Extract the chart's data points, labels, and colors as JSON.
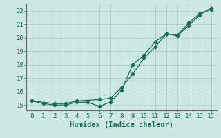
{
  "xlabel": "Humidex (Indice chaleur)",
  "background_color": "#cce8e0",
  "grid_color": "#aacfc8",
  "line_color": "#1a6b5a",
  "x_line1": [
    0,
    1,
    2,
    3,
    4,
    5,
    6,
    7,
    8,
    9,
    10,
    11,
    12,
    13,
    14,
    15,
    16
  ],
  "y_line1": [
    15.3,
    15.1,
    15.0,
    15.0,
    15.2,
    15.2,
    14.9,
    15.2,
    16.1,
    18.0,
    18.7,
    19.7,
    20.3,
    20.2,
    21.1,
    21.8,
    22.1
  ],
  "x_line2": [
    0,
    2,
    3,
    4,
    6,
    7,
    8,
    9,
    10,
    11,
    12,
    13,
    14,
    15,
    16
  ],
  "y_line2": [
    15.3,
    15.1,
    15.1,
    15.3,
    15.4,
    15.5,
    16.3,
    17.3,
    18.5,
    19.3,
    20.3,
    20.15,
    20.9,
    21.7,
    22.2
  ],
  "xlim": [
    -0.5,
    16.5
  ],
  "ylim": [
    14.6,
    22.5
  ],
  "yticks": [
    15,
    16,
    17,
    18,
    19,
    20,
    21,
    22
  ],
  "xticks": [
    0,
    1,
    2,
    3,
    4,
    5,
    6,
    7,
    8,
    9,
    10,
    11,
    12,
    13,
    14,
    15,
    16
  ],
  "marker": "D",
  "markersize": 2.5,
  "linewidth": 0.9,
  "tick_fontsize": 6.5,
  "label_fontsize": 7.5,
  "tick_color": "#1a6b5a",
  "label_color": "#1a6b5a"
}
